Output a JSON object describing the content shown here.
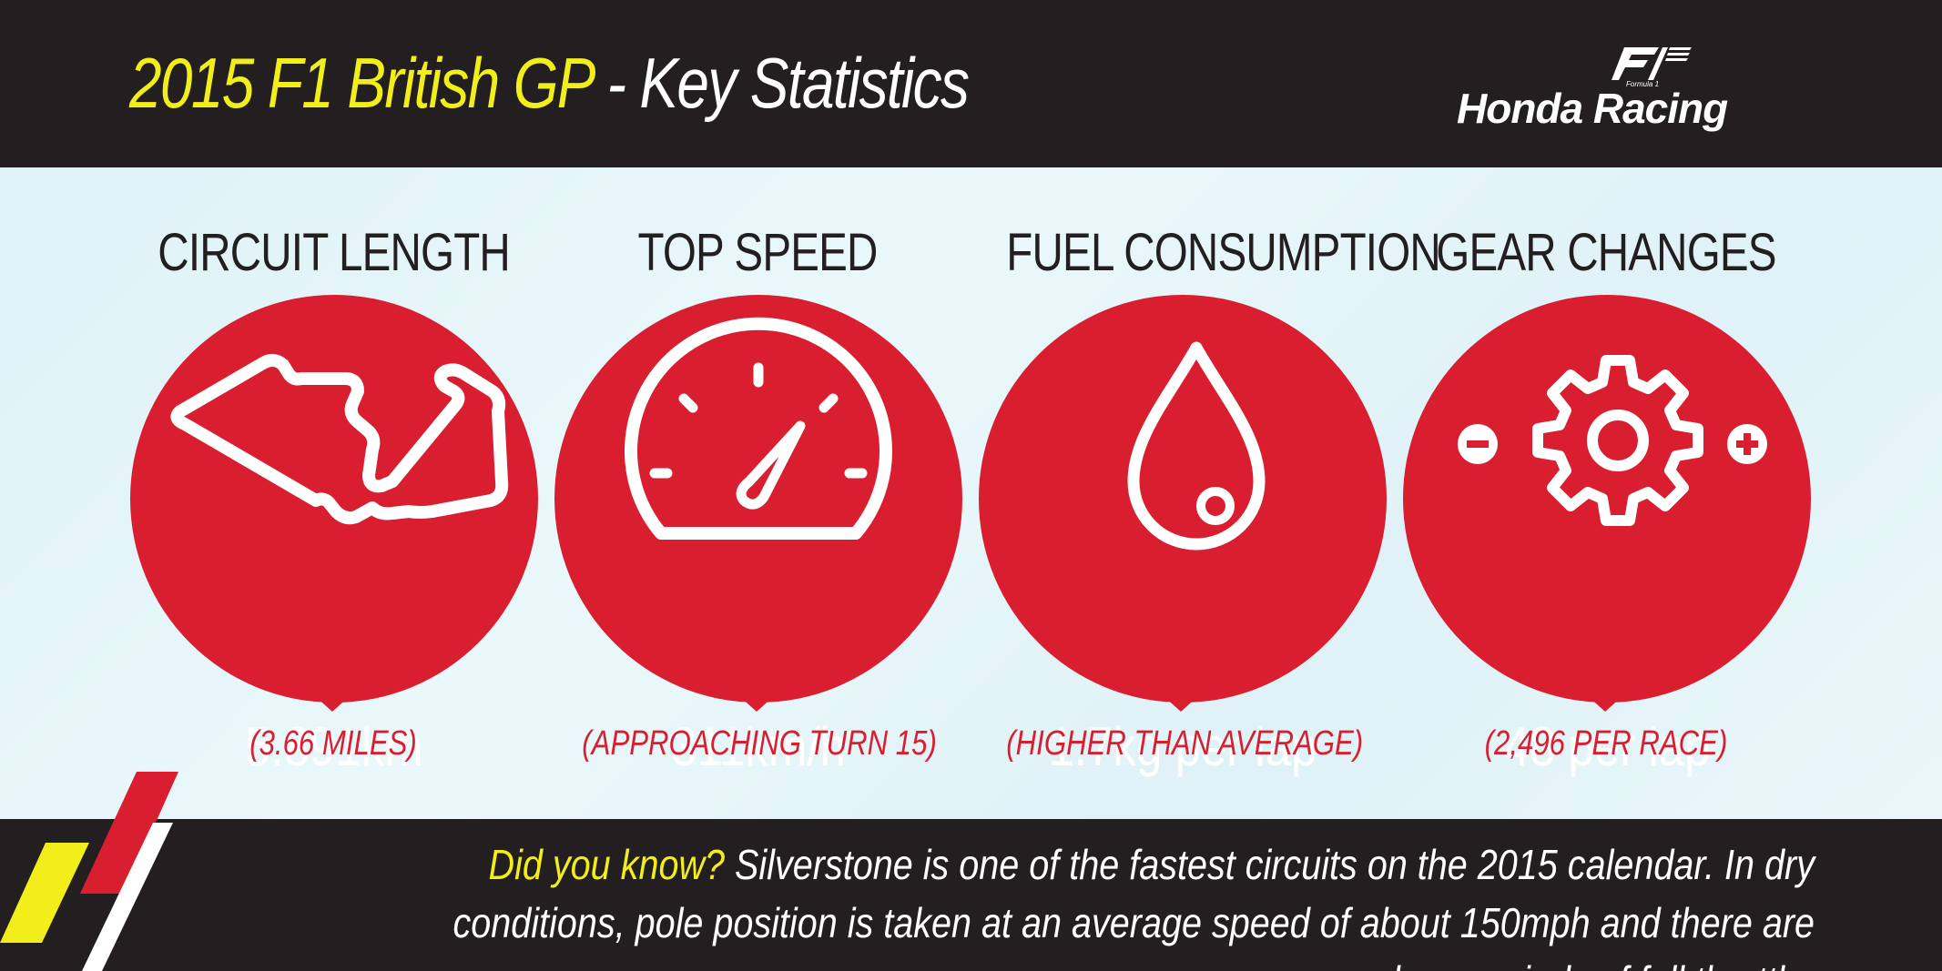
{
  "header": {
    "title_highlight": "2015 F1 British GP",
    "title_rest": " - Key Statistics",
    "logo_mark_text": "F1",
    "logo_small_text": "Formula 1",
    "logo_text": "Honda Racing"
  },
  "stats": [
    {
      "title": "CIRCUIT LENGTH",
      "value": "5.891km",
      "sub": "(3.66 MILES)",
      "icon": "circuit-map-icon"
    },
    {
      "title": "TOP SPEED",
      "value": "311km/h",
      "sub": "(APPROACHING TURN 15)",
      "icon": "speedometer-icon"
    },
    {
      "title": "FUEL CONSUMPTION",
      "value": "1.7kg per lap",
      "sub": "(HIGHER THAN AVERAGE)",
      "icon": "fuel-drop-icon"
    },
    {
      "title": "GEAR CHANGES",
      "value": "48 per lap",
      "sub": "(2,496 PER RACE)",
      "icon": "gear-icon"
    }
  ],
  "footer": {
    "lead": "Did you know?",
    "text": " Silverstone is one of the fastest circuits on the 2015 calendar. In dry conditions, pole position is taken at an average speed of about 150mph and there are long periods of full throttle."
  },
  "colors": {
    "dark": "#231f20",
    "red": "#d91f2f",
    "yellow": "#f2ee1c",
    "background": "#e6f6fa"
  }
}
